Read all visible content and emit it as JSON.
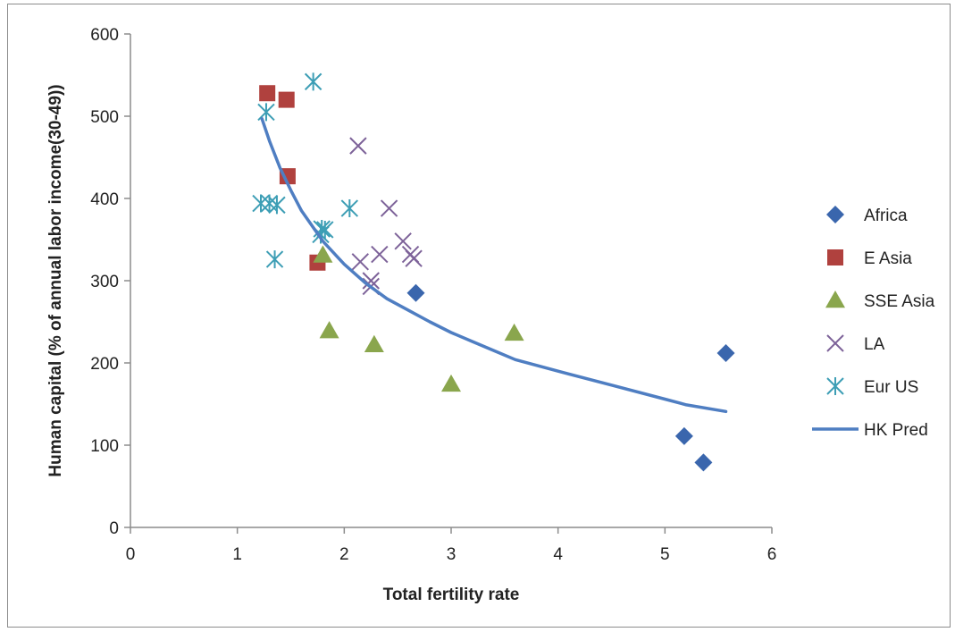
{
  "chart_data": {
    "type": "scatter",
    "title": "",
    "xlabel": "Total fertility rate",
    "ylabel": "Human capital (% of annual labor income(30-49))",
    "xlim": [
      0,
      6
    ],
    "ylim": [
      0,
      600
    ],
    "x_ticks": [
      "0",
      "1",
      "2",
      "3",
      "4",
      "5",
      "6"
    ],
    "y_ticks": [
      "0",
      "100",
      "200",
      "300",
      "400",
      "500",
      "600"
    ],
    "grid": false,
    "legend_position": "right",
    "series": [
      {
        "name": "Africa",
        "marker": "diamond",
        "color": "#3a66ad",
        "points": [
          [
            2.67,
            285
          ],
          [
            5.18,
            111
          ],
          [
            5.36,
            79
          ],
          [
            5.57,
            212
          ]
        ]
      },
      {
        "name": "E Asia",
        "marker": "square",
        "color": "#b0413e",
        "points": [
          [
            1.28,
            528
          ],
          [
            1.46,
            520
          ],
          [
            1.47,
            427
          ],
          [
            1.75,
            322
          ]
        ]
      },
      {
        "name": "SSE Asia",
        "marker": "triangle",
        "color": "#8aa64d",
        "points": [
          [
            1.8,
            331
          ],
          [
            1.86,
            239
          ],
          [
            2.28,
            222
          ],
          [
            3.0,
            174
          ],
          [
            3.59,
            236
          ]
        ]
      },
      {
        "name": "LA",
        "marker": "x",
        "color": "#7d6299",
        "points": [
          [
            2.13,
            464
          ],
          [
            2.42,
            388
          ],
          [
            2.55,
            348
          ],
          [
            2.33,
            332
          ],
          [
            2.15,
            323
          ],
          [
            2.62,
            332
          ],
          [
            2.65,
            327
          ],
          [
            2.25,
            300
          ],
          [
            2.25,
            293
          ]
        ]
      },
      {
        "name": "Eur US",
        "marker": "star",
        "color": "#3d9eb5",
        "points": [
          [
            1.71,
            542
          ],
          [
            1.27,
            505
          ],
          [
            1.22,
            394
          ],
          [
            1.3,
            394
          ],
          [
            1.37,
            392
          ],
          [
            2.05,
            388
          ],
          [
            1.35,
            326
          ],
          [
            1.79,
            363
          ],
          [
            1.78,
            356
          ],
          [
            1.82,
            362
          ]
        ]
      },
      {
        "name": "HK Pred",
        "marker": "line",
        "color": "#4f7ec2",
        "points": [
          [
            1.23,
            497
          ],
          [
            1.3,
            470
          ],
          [
            1.4,
            437
          ],
          [
            1.5,
            410
          ],
          [
            1.6,
            385
          ],
          [
            1.8,
            348
          ],
          [
            2.0,
            320
          ],
          [
            2.2,
            297
          ],
          [
            2.4,
            278
          ],
          [
            2.6,
            264
          ],
          [
            2.8,
            250
          ],
          [
            3.0,
            237
          ],
          [
            3.2,
            226
          ],
          [
            3.4,
            215
          ],
          [
            3.6,
            204
          ],
          [
            4.0,
            190
          ],
          [
            4.5,
            173
          ],
          [
            5.0,
            156
          ],
          [
            5.2,
            149
          ],
          [
            5.57,
            141
          ]
        ]
      }
    ]
  }
}
